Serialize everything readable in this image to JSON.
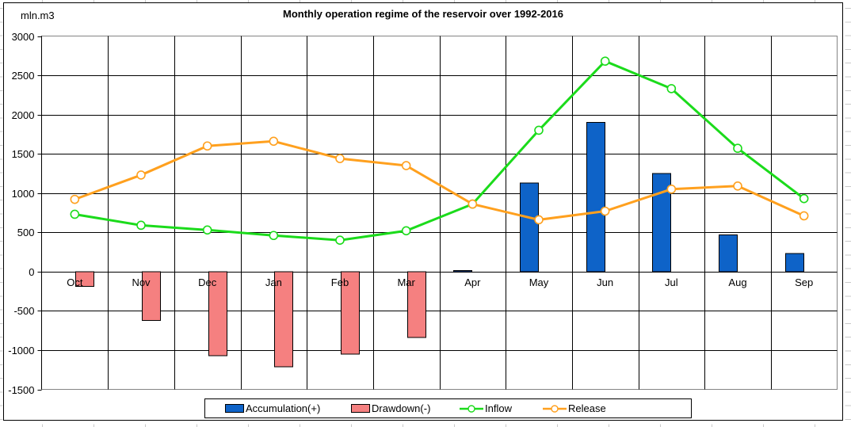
{
  "unit_label": "mln.m3",
  "chart_data": {
    "type": "bar",
    "subtype": "composite bar + line (clustered bars with two line overlays)",
    "title": "Monthly operation regime of the reservoir over 1992-2016",
    "unit_label": "mln.m3",
    "categories": [
      "Oct",
      "Nov",
      "Dec",
      "Jan",
      "Feb",
      "Mar",
      "Apr",
      "May",
      "Jun",
      "Jul",
      "Aug",
      "Sep"
    ],
    "series": [
      {
        "name": "Accumulation(+)",
        "type": "bar",
        "color": "#0e63c8",
        "values": [
          0,
          0,
          0,
          0,
          0,
          0,
          15,
          1130,
          1900,
          1250,
          470,
          230
        ]
      },
      {
        "name": "Drawdown(-)",
        "type": "bar",
        "color": "#f58080",
        "values": [
          -190,
          -620,
          -1070,
          -1210,
          -1050,
          -840,
          0,
          0,
          0,
          0,
          0,
          0
        ]
      },
      {
        "name": "Inflow",
        "type": "line",
        "color": "#1bdb1b",
        "values": [
          730,
          590,
          530,
          460,
          400,
          520,
          860,
          1800,
          2680,
          2330,
          1570,
          930
        ]
      },
      {
        "name": "Release",
        "type": "line",
        "color": "#ffa01e",
        "values": [
          920,
          1230,
          1600,
          1660,
          1440,
          1350,
          860,
          660,
          770,
          1050,
          1090,
          710
        ]
      }
    ],
    "y_axis": {
      "min": -1500,
      "max": 3000,
      "step": 500,
      "tick_labels": [
        "3000",
        "2500",
        "2000",
        "1500",
        "1000",
        "500",
        "0",
        "-500",
        "-1000",
        "-1500"
      ]
    },
    "x_axis": {
      "labels_at": "zero-line"
    },
    "grid": true,
    "legend_position": "bottom",
    "colors": {
      "grid": "#000000",
      "plot_border": "#848484",
      "chart_frame": "#000000",
      "background": "#ffffff"
    }
  }
}
